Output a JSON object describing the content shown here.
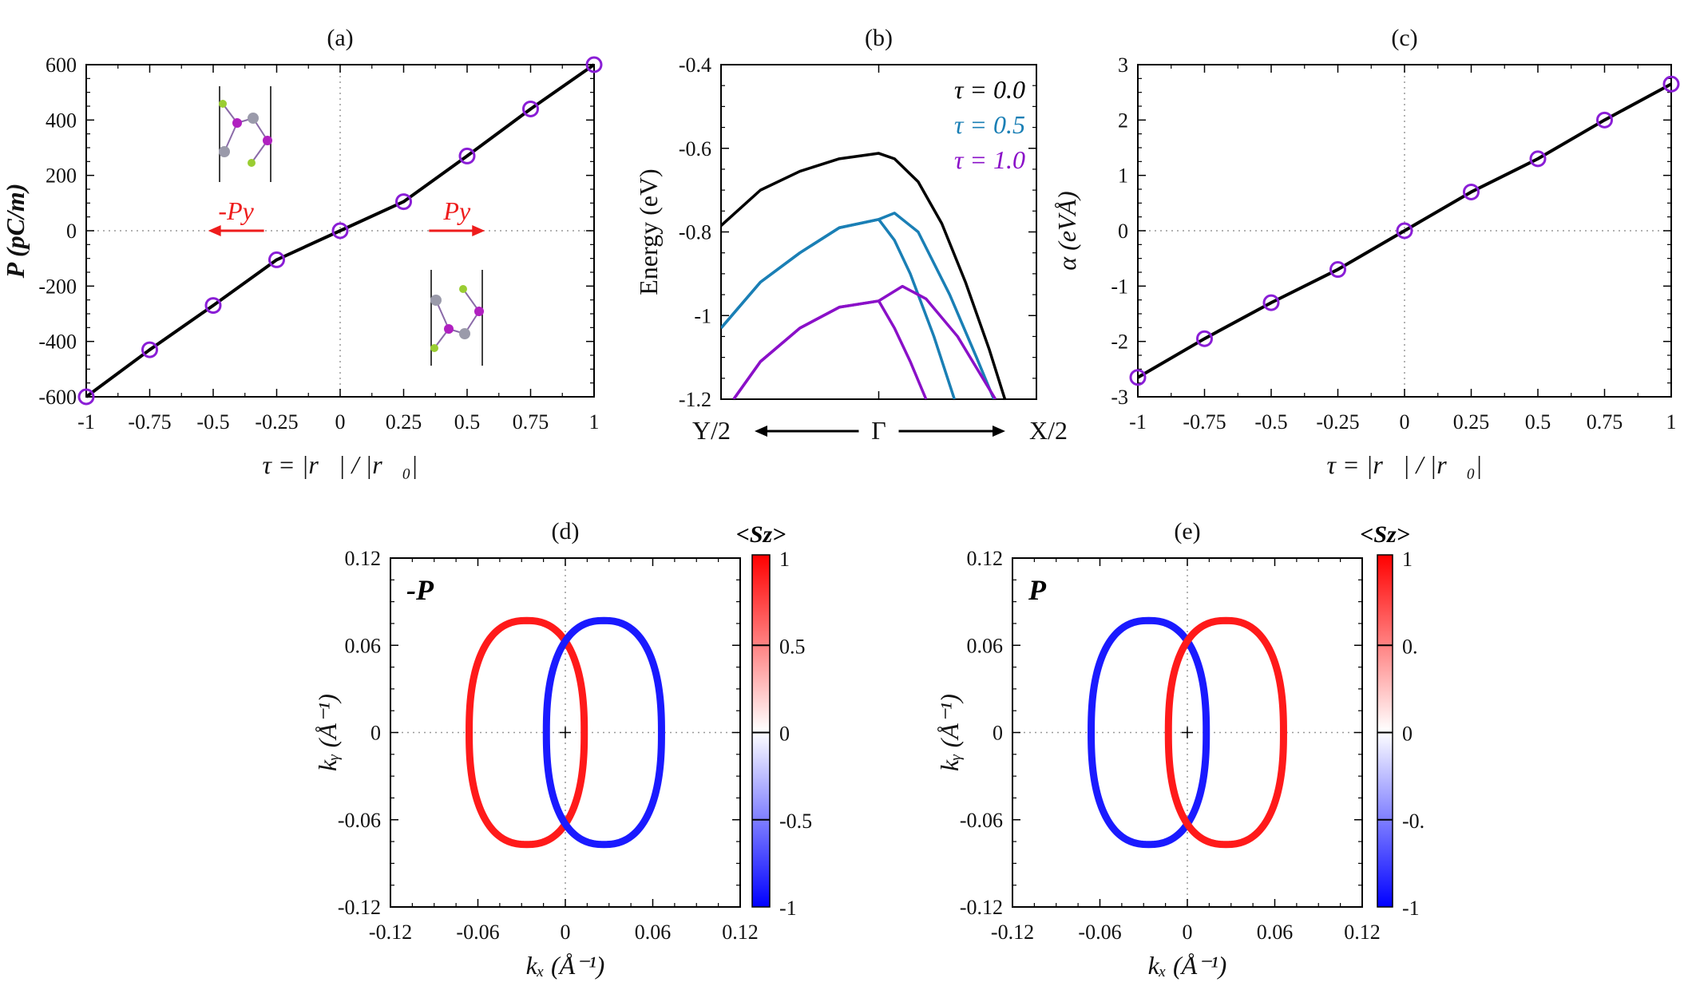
{
  "chart_data": [
    {
      "id": "a",
      "type": "line",
      "title": "(a)",
      "xlabel": "τ = |r⃗| / |r⃗₀|",
      "ylabel": "P (pC/m)",
      "xlim": [
        -1,
        1
      ],
      "ylim": [
        -600,
        600
      ],
      "xticks": [
        "-1",
        "-0.75",
        "-0.5",
        "-0.25",
        "0",
        "0.25",
        "0.5",
        "0.75",
        "1"
      ],
      "yticks": [
        "-600",
        "-400",
        "-200",
        "0",
        "200",
        "400",
        "600"
      ],
      "x": [
        -1,
        -0.75,
        -0.5,
        -0.25,
        0,
        0.25,
        0.5,
        0.75,
        1
      ],
      "y": [
        -600,
        -430,
        -270,
        -105,
        0,
        105,
        270,
        440,
        600
      ],
      "line_color": "#000000",
      "marker_color": "#8a1ed6",
      "marker": "open-circle",
      "annotations": [
        {
          "text": "-Py",
          "direction": "left",
          "color": "#ee1c1c"
        },
        {
          "text": "Py",
          "direction": "right",
          "color": "#ee1c1c"
        }
      ],
      "grid": "dotted zero lines"
    },
    {
      "id": "b",
      "type": "line",
      "title": "(b)",
      "ylabel": "Energy (eV)",
      "xlabel_points": [
        "Y/2",
        "Γ",
        "X/2"
      ],
      "xlim": [
        -1,
        1
      ],
      "ylim": [
        -1.2,
        -0.4
      ],
      "yticks": [
        "-1.2",
        "-1",
        "-0.8",
        "-0.6",
        "-0.4"
      ],
      "legend_position": "top-right",
      "series": [
        {
          "name": "τ = 0.0",
          "color": "#000000",
          "bands": [
            {
              "k": [
                -1,
                -0.75,
                -0.5,
                -0.25,
                0,
                0.1,
                0.25,
                0.4,
                0.55,
                0.7,
                0.8
              ],
              "E": [
                -0.785,
                -0.7,
                -0.655,
                -0.625,
                -0.612,
                -0.625,
                -0.68,
                -0.78,
                -0.92,
                -1.08,
                -1.2
              ]
            }
          ]
        },
        {
          "name": "τ = 0.5",
          "color": "#1a7fb5",
          "bands": [
            {
              "k": [
                -1,
                -0.75,
                -0.5,
                -0.25,
                0,
                0.1,
                0.2,
                0.35,
                0.48
              ],
              "E": [
                -1.03,
                -0.92,
                -0.85,
                -0.79,
                -0.77,
                -0.82,
                -0.9,
                -1.05,
                -1.2
              ]
            },
            {
              "k": [
                -1,
                -0.75,
                -0.5,
                -0.25,
                0,
                0.1,
                0.25,
                0.45,
                0.62,
                0.73
              ],
              "E": [
                -1.03,
                -0.92,
                -0.85,
                -0.79,
                -0.77,
                -0.755,
                -0.8,
                -0.95,
                -1.1,
                -1.2
              ]
            }
          ]
        },
        {
          "name": "τ = 1.0",
          "color": "#8a10c8",
          "bands": [
            {
              "k": [
                -0.92,
                -0.75,
                -0.5,
                -0.25,
                0,
                0.1,
                0.2,
                0.3
              ],
              "E": [
                -1.2,
                -1.11,
                -1.03,
                -0.98,
                -0.965,
                -1.03,
                -1.11,
                -1.2
              ]
            },
            {
              "k": [
                -0.92,
                -0.75,
                -0.5,
                -0.25,
                0,
                0.15,
                0.3,
                0.5,
                0.74
              ],
              "E": [
                -1.2,
                -1.11,
                -1.03,
                -0.98,
                -0.965,
                -0.93,
                -0.96,
                -1.05,
                -1.2
              ]
            }
          ]
        }
      ]
    },
    {
      "id": "c",
      "type": "line",
      "title": "(c)",
      "xlabel": "τ = |r⃗| / |r⃗₀|",
      "ylabel": "α (eVÅ)",
      "xlim": [
        -1,
        1
      ],
      "ylim": [
        -3,
        3
      ],
      "xticks": [
        "-1",
        "-0.75",
        "-0.5",
        "-0.25",
        "0",
        "0.25",
        "0.5",
        "0.75",
        "1"
      ],
      "yticks": [
        "-3",
        "-2",
        "-1",
        "0",
        "1",
        "2",
        "3"
      ],
      "x": [
        -1,
        -0.75,
        -0.5,
        -0.25,
        0,
        0.25,
        0.5,
        0.75,
        1
      ],
      "y": [
        -2.65,
        -1.95,
        -1.3,
        -0.7,
        0,
        0.7,
        1.3,
        2.0,
        2.65
      ],
      "line_color": "#000000",
      "marker_color": "#8a1ed6",
      "marker": "open-circle",
      "grid": "dotted zero lines"
    },
    {
      "id": "d",
      "type": "scatter",
      "title": "(d)",
      "inset_label": "-P",
      "xlabel": "kₓ (Å⁻¹)",
      "ylabel": "kᵧ (Å⁻¹)",
      "xlim": [
        -0.12,
        0.12
      ],
      "ylim": [
        -0.12,
        0.12
      ],
      "xticks": [
        "-0.12",
        "-0.06",
        "0",
        "0.06",
        "0.12"
      ],
      "yticks": [
        "-0.12",
        "-0.06",
        "0",
        "0.06",
        "0.12"
      ],
      "colorbar": {
        "label": "<Sz>",
        "range": [
          -1,
          1
        ],
        "ticks": [
          "-1",
          "-0.5",
          "0",
          "0.5",
          "1"
        ],
        "low_color": "#0000ff",
        "mid_color": "#ffffff",
        "high_color": "#ff0000"
      },
      "contours": [
        {
          "sz": 1,
          "center": [
            -0.0265,
            0
          ],
          "semi_axes": [
            0.0395,
            0.077
          ]
        },
        {
          "sz": -1,
          "center": [
            0.0265,
            0
          ],
          "semi_axes": [
            0.0395,
            0.077
          ]
        }
      ]
    },
    {
      "id": "e",
      "type": "scatter",
      "title": "(e)",
      "inset_label": "P",
      "xlabel": "kₓ (Å⁻¹)",
      "ylabel": "kᵧ (Å⁻¹)",
      "xlim": [
        -0.12,
        0.12
      ],
      "ylim": [
        -0.12,
        0.12
      ],
      "xticks": [
        "-0.12",
        "-0.06",
        "0",
        "0.06",
        "0.12"
      ],
      "yticks": [
        "-0.12",
        "-0.06",
        "0",
        "0.06",
        "0.12"
      ],
      "colorbar": {
        "label": "<Sz>",
        "range": [
          -1,
          1
        ],
        "ticks": [
          "-1",
          "-0.",
          "0",
          "0.",
          "1"
        ],
        "low_color": "#0000ff",
        "mid_color": "#ffffff",
        "high_color": "#ff0000"
      },
      "contours": [
        {
          "sz": -1,
          "center": [
            -0.0265,
            0
          ],
          "semi_axes": [
            0.0395,
            0.077
          ]
        },
        {
          "sz": 1,
          "center": [
            0.0265,
            0
          ],
          "semi_axes": [
            0.0395,
            0.077
          ]
        }
      ]
    }
  ]
}
